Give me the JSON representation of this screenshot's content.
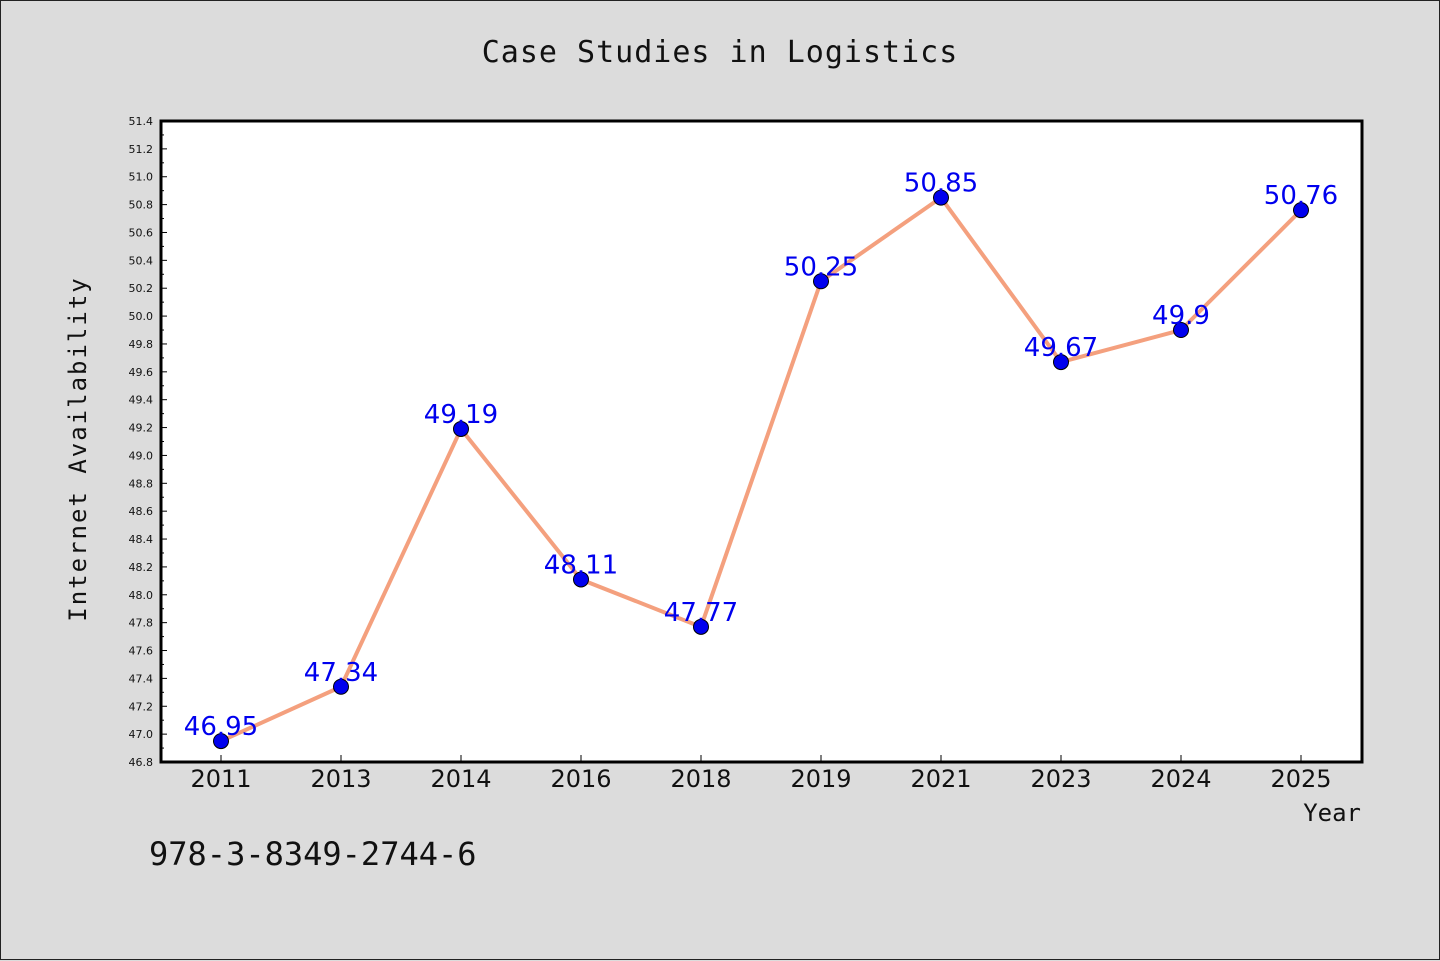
{
  "chart_data": {
    "type": "line",
    "title": "Case Studies in Logistics",
    "xlabel": "Year",
    "ylabel": "Internet Availability",
    "categories": [
      "2011",
      "2013",
      "2014",
      "2016",
      "2018",
      "2019",
      "2021",
      "2023",
      "2024",
      "2025"
    ],
    "values": [
      46.95,
      47.34,
      49.19,
      48.11,
      47.77,
      50.25,
      50.85,
      49.67,
      49.9,
      50.76
    ],
    "data_labels": [
      "46.95",
      "47.34",
      "49.19",
      "48.11",
      "47.77",
      "50.25",
      "50.85",
      "49.67",
      "49.9",
      "50.76"
    ],
    "ylim": [
      46.8,
      51.4
    ],
    "yticks": [
      "46.8",
      "47.0",
      "47.2",
      "47.4",
      "47.6",
      "47.8",
      "48.0",
      "48.2",
      "48.4",
      "48.6",
      "48.8",
      "49.0",
      "49.2",
      "49.4",
      "49.6",
      "49.8",
      "50.0",
      "50.2",
      "50.4",
      "50.6",
      "50.8",
      "51.0",
      "51.2",
      "51.4"
    ],
    "grid": false,
    "line_color": "#f4a07e",
    "marker_color": "#0000ee",
    "label_color": "#0000ee"
  },
  "footer": {
    "isbn": "978-3-8349-2744-6"
  }
}
